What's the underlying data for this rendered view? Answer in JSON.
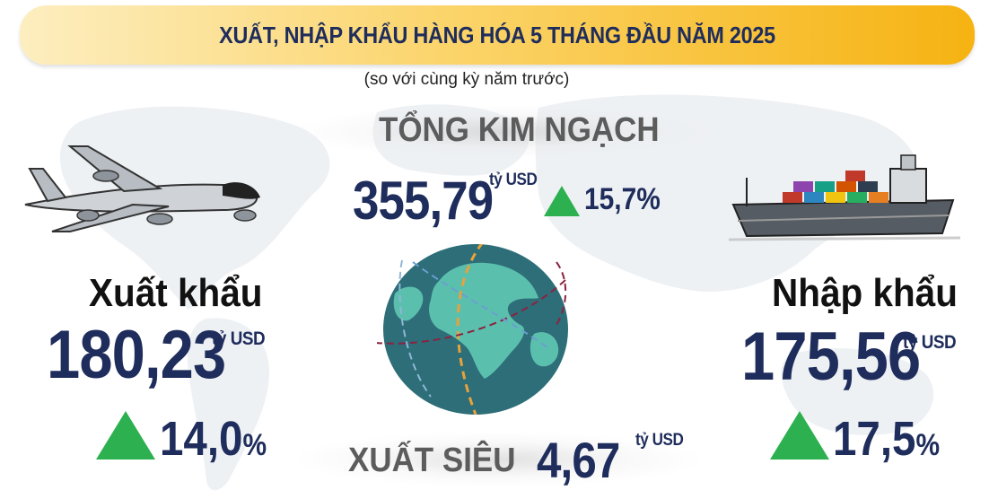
{
  "header": {
    "title": "XUẤT, NHẬP KHẨU HÀNG HÓA 5 THÁNG ĐẦU NĂM 2025",
    "subtitle": "(so với cùng kỳ năm trước)"
  },
  "total": {
    "label": "TỔNG KIM NGẠCH",
    "value": "355,79",
    "unit": "tỷ USD",
    "change": "15,7%",
    "change_direction": "up"
  },
  "export": {
    "label": "Xuất khẩu",
    "value": "180,23",
    "unit": "tỷ USD",
    "change": "14,0",
    "change_suffix": "%",
    "change_direction": "up",
    "icon": "airplane-icon"
  },
  "import": {
    "label": "Nhập khẩu",
    "value": "175,56",
    "unit": "tỷ USD",
    "change": "17,5",
    "change_suffix": "%",
    "change_direction": "up",
    "icon": "cargo-ship-icon"
  },
  "surplus": {
    "label": "XUẤT SIÊU",
    "value": "4,67",
    "unit": "tỷ USD"
  },
  "colors": {
    "banner": "#f6b312",
    "navy": "#1f2d5c",
    "up": "#2db050",
    "globe_ocean": "#2d6e78",
    "globe_land": "#5bbfae"
  }
}
